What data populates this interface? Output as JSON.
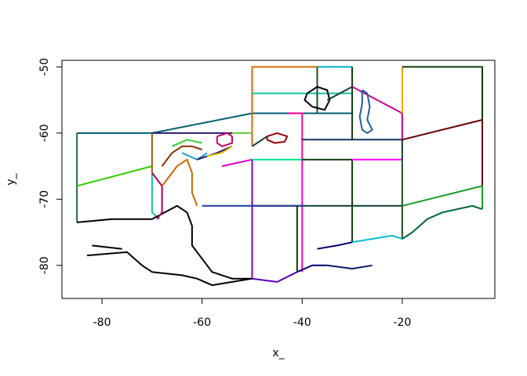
{
  "chart_data": {
    "type": "line",
    "title": "",
    "xlabel": "x_",
    "ylabel": "y_",
    "xlim": [
      -88,
      -1.5
    ],
    "ylim": [
      -85,
      -49
    ],
    "x_ticks": [
      -80,
      -60,
      -40,
      -20
    ],
    "y_ticks": [
      -80,
      -70,
      -60,
      -50
    ],
    "x_tick_labels": [
      "-80",
      "-60",
      "-40",
      "-20"
    ],
    "y_tick_labels": [
      "-80",
      "-70",
      "-60",
      "-50"
    ],
    "grid": false,
    "legend": "none",
    "series": [
      {
        "color": "#005f73",
        "points": [
          [
            -85,
            -60
          ],
          [
            -70,
            -60
          ],
          [
            -50,
            -57
          ],
          [
            -30,
            -57
          ]
        ]
      },
      {
        "color": "#2d6a4f",
        "points": [
          [
            -85,
            -60
          ],
          [
            -85,
            -73.5
          ]
        ]
      },
      {
        "color": "#33cc00",
        "points": [
          [
            -85,
            -68
          ],
          [
            -70,
            -65
          ]
        ]
      },
      {
        "color": "#b35806",
        "points": [
          [
            -70,
            -60
          ],
          [
            -70,
            -66
          ]
        ]
      },
      {
        "color": "#14c4a4",
        "points": [
          [
            -70,
            -66
          ],
          [
            -70,
            -72
          ],
          [
            -68.5,
            -73
          ]
        ]
      },
      {
        "color": "#2a1a6e",
        "points": [
          [
            -70,
            -60
          ],
          [
            -54,
            -60
          ]
        ]
      },
      {
        "color": "#66cc33",
        "points": [
          [
            -54,
            -60
          ],
          [
            -50,
            -60
          ],
          [
            -50,
            -62
          ]
        ]
      },
      {
        "color": "#d46b08",
        "points": [
          [
            -50,
            -62
          ],
          [
            -50,
            -50
          ],
          [
            -30,
            -50
          ]
        ]
      },
      {
        "color": "#14c4a4",
        "points": [
          [
            -50,
            -54
          ],
          [
            -30,
            -54
          ]
        ]
      },
      {
        "color": "#0b3d3a",
        "points": [
          [
            -50,
            -62
          ],
          [
            -47,
            -60.5
          ]
        ]
      },
      {
        "color": "#cc00cc",
        "points": [
          [
            -50,
            -64
          ],
          [
            -56,
            -65
          ]
        ]
      },
      {
        "color": "#7a00cc",
        "points": [
          [
            -50,
            -64
          ],
          [
            -50,
            -82
          ]
        ]
      },
      {
        "color": "#ff0099",
        "points": [
          [
            -43,
            -57
          ],
          [
            -40,
            -57
          ],
          [
            -40,
            -64
          ]
        ]
      },
      {
        "color": "#00e08a",
        "points": [
          [
            -50,
            -64
          ],
          [
            -40,
            -64
          ]
        ]
      },
      {
        "color": "#ff00cc",
        "points": [
          [
            -40,
            -64
          ],
          [
            -40,
            -81
          ]
        ]
      },
      {
        "color": "#0b3d0b",
        "points": [
          [
            -40,
            -64
          ],
          [
            -30,
            -64
          ],
          [
            -30,
            -76.5
          ]
        ]
      },
      {
        "color": "#ff00ff",
        "points": [
          [
            -30,
            -64
          ],
          [
            -20,
            -64
          ],
          [
            -20,
            -61
          ]
        ]
      },
      {
        "color": "#113366",
        "points": [
          [
            -40,
            -61
          ],
          [
            -30,
            -61
          ],
          [
            -20,
            -61
          ]
        ]
      },
      {
        "color": "#0b3d3a",
        "points": [
          [
            -50,
            -71
          ],
          [
            -20,
            -71
          ]
        ]
      },
      {
        "color": "#1f3aa0",
        "points": [
          [
            -60,
            -71
          ],
          [
            -40,
            -71
          ]
        ]
      },
      {
        "color": "#0b3d0b",
        "points": [
          [
            -41,
            -71
          ],
          [
            -41,
            -81
          ]
        ]
      },
      {
        "color": "#1f4d1f",
        "points": [
          [
            -37,
            -50
          ],
          [
            -37,
            -57
          ]
        ]
      },
      {
        "color": "#00bcd4",
        "points": [
          [
            -37,
            -50
          ],
          [
            -30,
            -50
          ]
        ]
      },
      {
        "color": "#0b3d0b",
        "points": [
          [
            -30,
            -50
          ],
          [
            -30,
            -61
          ]
        ]
      },
      {
        "color": "#cc0088",
        "points": [
          [
            -30,
            -53
          ],
          [
            -20,
            -57
          ],
          [
            -20,
            -61
          ]
        ]
      },
      {
        "color": "#f5a400",
        "points": [
          [
            -20,
            -50
          ],
          [
            -20,
            -57
          ]
        ]
      },
      {
        "color": "#0b3d0b",
        "points": [
          [
            -20,
            -50
          ],
          [
            -4,
            -50
          ],
          [
            -4,
            -58
          ]
        ]
      },
      {
        "color": "#1f4d1f",
        "points": [
          [
            -20,
            -61
          ],
          [
            -20,
            -76
          ]
        ]
      },
      {
        "color": "#660000",
        "points": [
          [
            -20,
            -61
          ],
          [
            -4,
            -58
          ],
          [
            -4,
            -68
          ]
        ]
      },
      {
        "color": "#1a9e2a",
        "points": [
          [
            -20,
            -71
          ],
          [
            -4,
            -68
          ],
          [
            -4,
            -71.5
          ]
        ]
      },
      {
        "color": "#006633",
        "points": [
          [
            -20,
            -76
          ],
          [
            -18,
            -75
          ],
          [
            -15,
            -73
          ],
          [
            -12,
            -72
          ],
          [
            -9,
            -71.5
          ],
          [
            -6,
            -71
          ],
          [
            -4,
            -71.5
          ]
        ]
      },
      {
        "color": "#00bcd4",
        "points": [
          [
            -30,
            -76.5
          ],
          [
            -26,
            -76
          ],
          [
            -22,
            -75.5
          ],
          [
            -20,
            -76
          ]
        ]
      },
      {
        "color": "#000066",
        "points": [
          [
            -37,
            -77.5
          ],
          [
            -33,
            -77
          ],
          [
            -30,
            -76.5
          ]
        ]
      },
      {
        "color": "#0b1a66",
        "points": [
          [
            -35,
            -80
          ],
          [
            -30,
            -80.5
          ],
          [
            -26,
            -80
          ]
        ]
      },
      {
        "color": "#000066",
        "points": [
          [
            -41,
            -81
          ],
          [
            -38,
            -80
          ],
          [
            -35,
            -80
          ]
        ]
      },
      {
        "color": "#5500bb",
        "points": [
          [
            -50,
            -82
          ],
          [
            -45,
            -82.5
          ],
          [
            -41,
            -81
          ]
        ]
      },
      {
        "color": "#000000",
        "points": [
          [
            -85,
            -73.5
          ],
          [
            -78,
            -73
          ],
          [
            -70,
            -73
          ],
          [
            -65,
            -71
          ],
          [
            -63,
            -72
          ],
          [
            -62,
            -74
          ],
          [
            -62,
            -77
          ],
          [
            -60,
            -79
          ],
          [
            -58,
            -81
          ],
          [
            -54,
            -82
          ],
          [
            -50,
            -82
          ]
        ]
      },
      {
        "color": "#000000",
        "points": [
          [
            -83,
            -78.5
          ],
          [
            -75,
            -78
          ],
          [
            -72,
            -80
          ],
          [
            -70,
            -81
          ],
          [
            -64,
            -81.5
          ],
          [
            -61,
            -82
          ],
          [
            -58,
            -83
          ],
          [
            -54,
            -82.5
          ],
          [
            -50,
            -82
          ]
        ]
      },
      {
        "color": "#000000",
        "points": [
          [
            -82,
            -77
          ],
          [
            -76,
            -77.5
          ]
        ]
      },
      {
        "color": "#b30059",
        "points": [
          [
            -70,
            -66
          ],
          [
            -68,
            -68
          ],
          [
            -68,
            -72
          ],
          [
            -69,
            -73
          ]
        ]
      },
      {
        "color": "#cc6600",
        "points": [
          [
            -68,
            -68
          ],
          [
            -66,
            -66
          ],
          [
            -65,
            -65
          ],
          [
            -63,
            -64
          ],
          [
            -62,
            -66
          ],
          [
            -62,
            -69
          ],
          [
            -61,
            -71
          ]
        ]
      },
      {
        "color": "#8b2d00",
        "points": [
          [
            -68,
            -65
          ],
          [
            -66,
            -63
          ],
          [
            -64,
            -62
          ],
          [
            -62,
            -62
          ],
          [
            -60,
            -62.5
          ]
        ]
      },
      {
        "color": "#33cc33",
        "points": [
          [
            -66,
            -62
          ],
          [
            -63,
            -61
          ],
          [
            -60,
            -61.5
          ]
        ]
      },
      {
        "color": "#1fa0d0",
        "points": [
          [
            -64,
            -63
          ],
          [
            -61,
            -64
          ],
          [
            -59,
            -63
          ]
        ]
      },
      {
        "color": "#2a1a6e",
        "points": [
          [
            -61,
            -64
          ],
          [
            -57,
            -63
          ],
          [
            -54,
            -62
          ]
        ]
      },
      {
        "color": "#e6c300",
        "points": [
          [
            -59,
            -63.5
          ],
          [
            -56,
            -63
          ],
          [
            -54,
            -62
          ]
        ]
      },
      {
        "color": "#cc0066",
        "points": [
          [
            -57,
            -60.5
          ],
          [
            -55,
            -60
          ],
          [
            -54,
            -60.5
          ],
          [
            -54,
            -61.5
          ],
          [
            -56,
            -62
          ],
          [
            -57,
            -61.5
          ],
          [
            -57,
            -60.5
          ]
        ]
      },
      {
        "color": "#990000",
        "points": [
          [
            -47,
            -60.5
          ],
          [
            -45,
            -60
          ],
          [
            -43,
            -60.5
          ],
          [
            -43.5,
            -61.3
          ],
          [
            -45.5,
            -61.5
          ],
          [
            -47,
            -61
          ],
          [
            -47,
            -60.5
          ]
        ]
      },
      {
        "color": "#000000",
        "points": [
          [
            -39,
            -54
          ],
          [
            -37,
            -53
          ],
          [
            -35,
            -53.5
          ],
          [
            -34.5,
            -55
          ],
          [
            -35.5,
            -56.5
          ],
          [
            -38,
            -56
          ],
          [
            -39.5,
            -55
          ],
          [
            -39,
            -54
          ]
        ]
      },
      {
        "color": "#0b3d3a",
        "points": [
          [
            -35,
            -55
          ],
          [
            -30,
            -53
          ]
        ]
      },
      {
        "color": "#1f5fa0",
        "points": [
          [
            -28,
            -53.5
          ],
          [
            -27,
            -54
          ],
          [
            -26.5,
            -56
          ],
          [
            -27,
            -58
          ],
          [
            -26,
            -59.5
          ],
          [
            -27,
            -60
          ],
          [
            -28,
            -59.5
          ],
          [
            -28.5,
            -57.5
          ],
          [
            -28,
            -55.5
          ],
          [
            -28,
            -53.5
          ]
        ]
      }
    ]
  }
}
